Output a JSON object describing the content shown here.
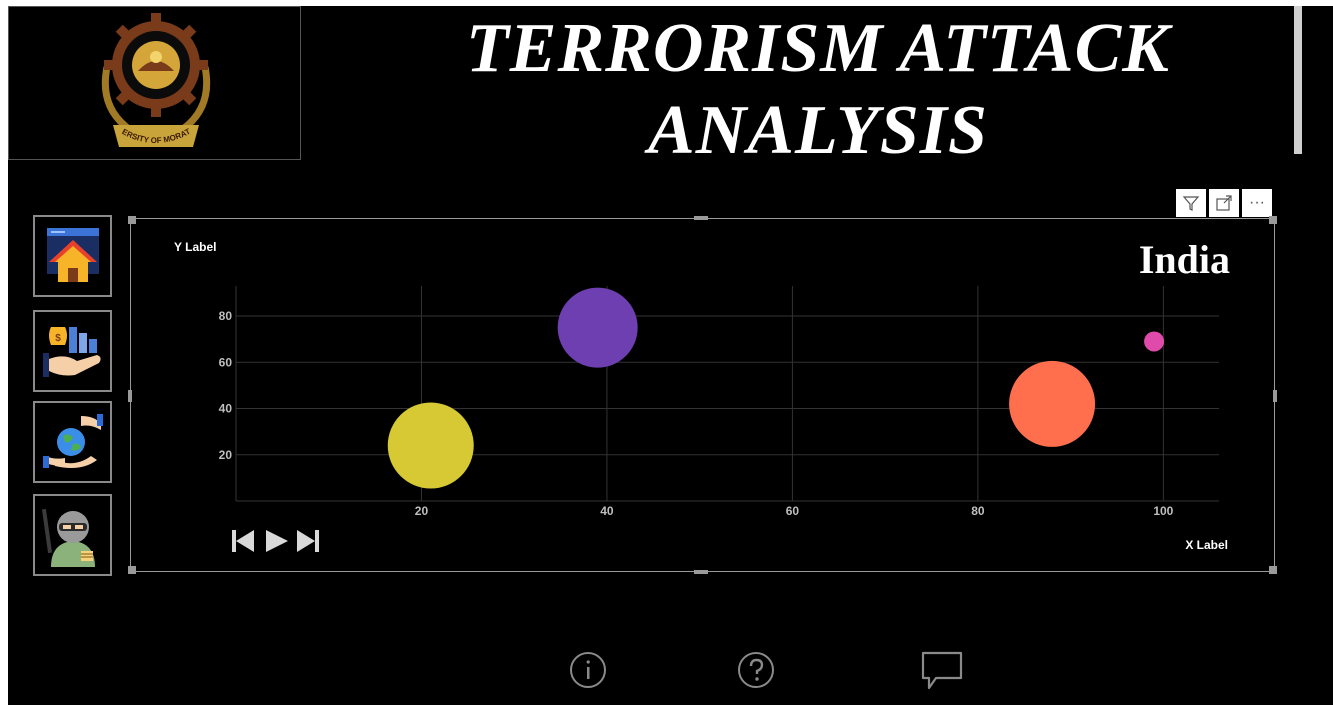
{
  "header": {
    "title_line1": "TERRORISM ATTACK",
    "title_line2": "ANALYSIS",
    "logo_text": "UNIVERSITY OF MORATUWA"
  },
  "nav": [
    {
      "icon": "home-icon"
    },
    {
      "icon": "money-hand-icon"
    },
    {
      "icon": "globe-hands-icon"
    },
    {
      "icon": "terrorist-icon"
    }
  ],
  "toolbar": {
    "filter_icon": "filter-icon",
    "focus_icon": "focus-mode-icon",
    "more_label": "···"
  },
  "chart_data": {
    "type": "scatter",
    "title": "India",
    "xlabel": "X Label",
    "ylabel": "Y Label",
    "xlim": [
      0,
      106
    ],
    "ylim": [
      0,
      93
    ],
    "xticks": [
      20,
      40,
      60,
      80,
      100
    ],
    "yticks": [
      20,
      40,
      60,
      80
    ],
    "grid": true,
    "points": [
      {
        "x": 21,
        "y": 24,
        "size": 43,
        "color": "#d6c934"
      },
      {
        "x": 39,
        "y": 75,
        "size": 40,
        "color": "#6e3fb0"
      },
      {
        "x": 88,
        "y": 42,
        "size": 43,
        "color": "#ff6f4e"
      },
      {
        "x": 99,
        "y": 69,
        "size": 10,
        "color": "#e04aab"
      }
    ]
  },
  "play_axis": {
    "prev_icon": "skip-previous-icon",
    "play_icon": "play-icon",
    "next_icon": "skip-next-icon"
  },
  "footer": {
    "info_icon": "info-icon",
    "help_icon": "help-icon",
    "comment_icon": "comment-icon"
  },
  "colors": {
    "background": "#000000",
    "grid": "#333333",
    "tick_text": "#bfbfbf"
  }
}
